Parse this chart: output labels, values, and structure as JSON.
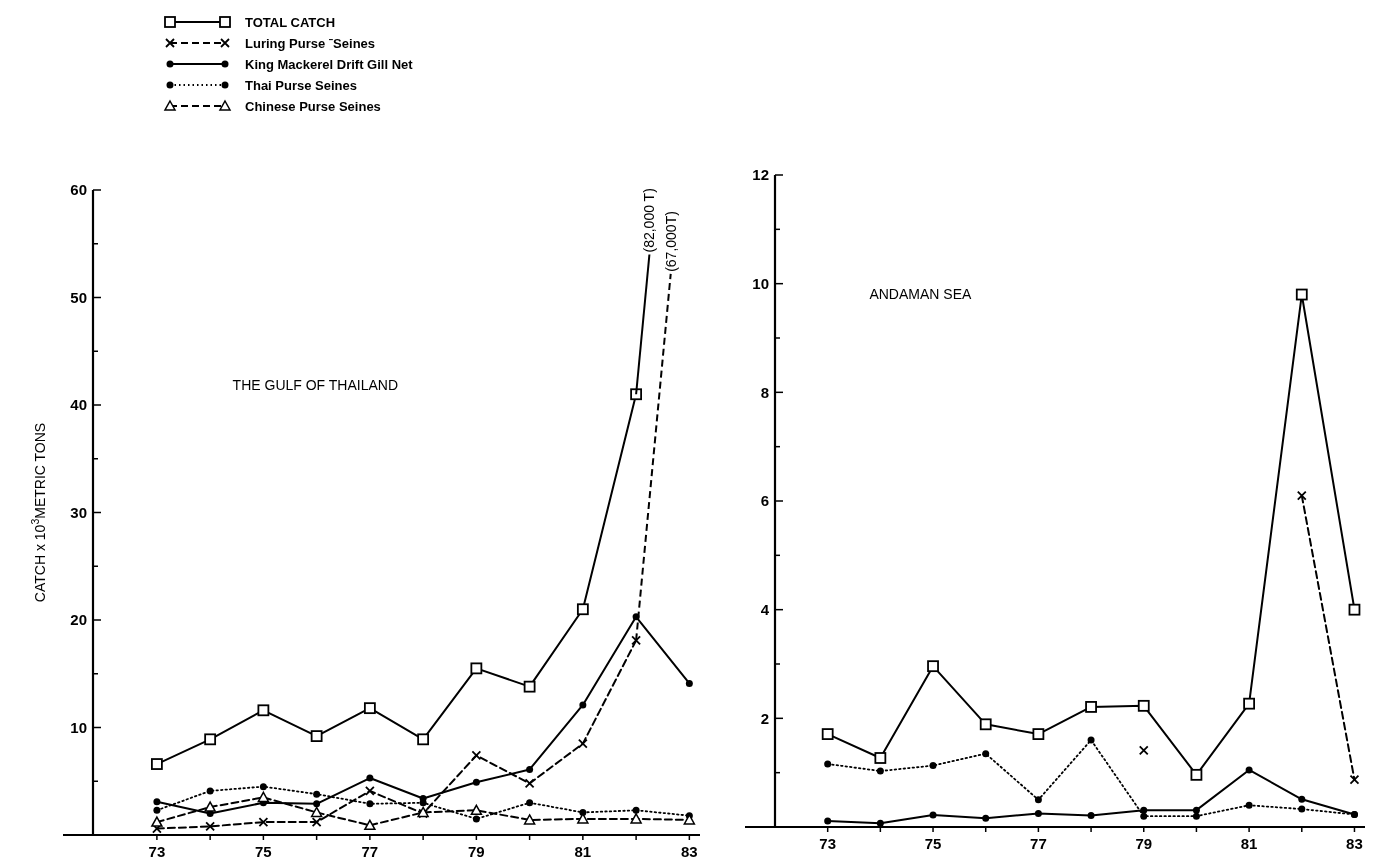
{
  "chart_data": [
    {
      "type": "line",
      "title": "THE GULF OF THAILAND",
      "ylabel": "CATCH x 10$^{3}$METRIC TONS",
      "x": [
        73,
        74,
        75,
        76,
        77,
        78,
        79,
        80,
        81,
        82,
        83
      ],
      "xlim": [
        71.8,
        83.2
      ],
      "xticks": [
        73,
        {
          "value": 74,
          "label": null
        },
        75,
        {
          "value": 76,
          "label": null
        },
        77,
        {
          "value": 78,
          "label": null
        },
        79,
        {
          "value": 80,
          "label": null
        },
        81,
        {
          "value": 82,
          "label": null
        },
        83
      ],
      "ylim": [
        0,
        60
      ],
      "yticks": [
        {
          "value": 5,
          "label": null
        },
        10,
        {
          "value": 15,
          "label": null
        },
        20,
        {
          "value": 25,
          "label": null
        },
        30,
        {
          "value": 35,
          "label": null
        },
        40,
        {
          "value": 45,
          "label": null
        },
        50,
        {
          "value": 55,
          "label": null
        },
        60
      ],
      "legend": "top left",
      "grid": false,
      "series": [
        {
          "name": "TOTAL CATCH",
          "color": "#000000",
          "marker": "square",
          "line_style": "solid",
          "values": [
            6.6,
            8.9,
            11.6,
            9.2,
            11.8,
            8.9,
            15.5,
            13.8,
            21,
            41,
            null
          ]
        },
        {
          "name": "Luring Purse ˉSeines",
          "color": "#000000",
          "marker": "cross",
          "line_style": "dashed",
          "values": [
            0.6,
            0.8,
            1.2,
            1.2,
            4.1,
            2.0,
            7.4,
            4.8,
            8.5,
            18.1,
            null
          ]
        },
        {
          "name": "King Mackerel Drift Gill Net",
          "color": "#000000",
          "marker": "circle",
          "line_style": "solid",
          "values": [
            3.1,
            2.0,
            3.0,
            2.9,
            5.3,
            3.4,
            4.9,
            6.1,
            12.1,
            20.3,
            14.1
          ]
        },
        {
          "name": "Thai Purse Seines",
          "color": "#000000",
          "marker": "circle",
          "line_style": "dotted",
          "values": [
            2.3,
            4.1,
            4.5,
            3.8,
            2.9,
            3.0,
            1.5,
            3.0,
            2.1,
            2.3,
            1.8
          ]
        },
        {
          "name": "Chinese Purse Seines",
          "color": "#000000",
          "marker": "triangle",
          "line_style": "dashed",
          "values": [
            1.2,
            2.6,
            3.5,
            2.1,
            0.9,
            2.1,
            2.3,
            1.4,
            1.5,
            1.5,
            1.4
          ]
        }
      ],
      "annotations": [
        {
          "text": "(82,000 T)",
          "x": 82,
          "y": 41
        },
        {
          "text": "(67,000T)",
          "x": 82,
          "y": 18.1
        }
      ]
    },
    {
      "type": "line",
      "title": "ANDAMAN SEA",
      "x": [
        73,
        74,
        75,
        76,
        77,
        78,
        79,
        80,
        81,
        82,
        83
      ],
      "xlim": [
        72.0,
        83.2
      ],
      "xticks": [
        73,
        {
          "value": 74,
          "label": null
        },
        75,
        {
          "value": 76,
          "label": null
        },
        77,
        {
          "value": 78,
          "label": null
        },
        79,
        {
          "value": 80,
          "label": null
        },
        81,
        {
          "value": 82,
          "label": null
        },
        83
      ],
      "ylim": [
        0,
        12
      ],
      "yticks": [
        {
          "value": 1,
          "label": null
        },
        2,
        {
          "value": 3,
          "label": null
        },
        4,
        {
          "value": 5,
          "label": null
        },
        6,
        {
          "value": 7,
          "label": null
        },
        8,
        {
          "value": 9,
          "label": null
        },
        10,
        {
          "value": 11,
          "label": null
        },
        12
      ],
      "grid": false,
      "series": [
        {
          "color": "#000000",
          "marker": "square",
          "line_style": "solid",
          "values": [
            1.71,
            1.27,
            2.96,
            1.89,
            1.71,
            2.21,
            2.23,
            0.96,
            2.27,
            9.8,
            4.0
          ]
        },
        {
          "color": "#000000",
          "marker": "cross",
          "line_style": "dashed",
          "values": [
            null,
            null,
            null,
            null,
            null,
            null,
            1.41,
            null,
            null,
            6.1,
            0.87
          ]
        },
        {
          "color": "#000000",
          "marker": "circle",
          "line_style": "solid",
          "values": [
            0.11,
            0.07,
            0.22,
            0.16,
            0.25,
            0.21,
            0.31,
            0.31,
            1.05,
            0.51,
            0.23
          ]
        },
        {
          "color": "#000000",
          "marker": "circle",
          "line_style": "dotted",
          "values": [
            1.16,
            1.03,
            1.13,
            1.35,
            0.5,
            1.6,
            0.2,
            0.2,
            0.4,
            0.33,
            0.23
          ]
        }
      ]
    }
  ]
}
